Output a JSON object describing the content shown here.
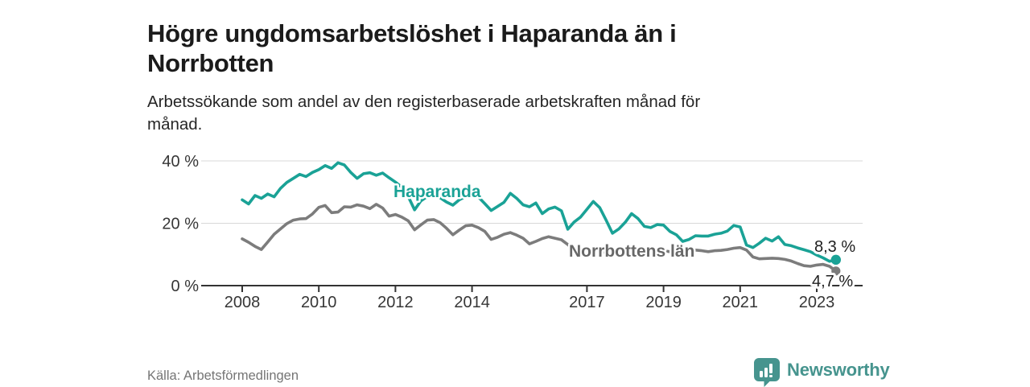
{
  "header": {
    "title_lines": [
      "Högre ungdomsarbetslöshet i Haparanda än i",
      "Norrbotten"
    ],
    "subtitle_lines": [
      "Arbetssökande som andel av den registerbaserade arbetskraften månad för",
      "månad."
    ]
  },
  "footer": {
    "source": "Källa: Arbetsförmedlingen",
    "brand": "Newsworthy"
  },
  "colors": {
    "teal": "#1aa296",
    "gray": "#7c7c7c",
    "gray_label": "#686868",
    "grid": "#d8d8d8",
    "axis": "#333333",
    "brand_teal": "#46948e"
  },
  "chart_data": {
    "type": "line",
    "title": "Högre ungdomsarbetslöshet i Haparanda än i Norrbotten",
    "subtitle": "Arbetssökande som andel av den registerbaserade arbetskraften månad för månad.",
    "source": "Källa: Arbetsförmedlingen",
    "unit": "%",
    "grid": "horizontal-only",
    "legend_position": "inline-labels",
    "x_start_year": 2008,
    "x_step_months": 2,
    "x_end_approx": 2023.5,
    "ylim": [
      0,
      42
    ],
    "x_ticks": [
      {
        "year": 2008,
        "label": "2008"
      },
      {
        "year": 2010,
        "label": "2010"
      },
      {
        "year": 2012,
        "label": "2012"
      },
      {
        "year": 2014,
        "label": "2014"
      },
      {
        "year": 2017,
        "label": "2017"
      },
      {
        "year": 2019,
        "label": "2019"
      },
      {
        "year": 2021,
        "label": "2021"
      },
      {
        "year": 2023,
        "label": "2023"
      }
    ],
    "y_ticks": [
      {
        "value": 0,
        "label": "0 %"
      },
      {
        "value": 20,
        "label": "20 %"
      },
      {
        "value": 40,
        "label": "40 %"
      }
    ],
    "series": [
      {
        "name": "Haparanda",
        "color": "#1aa296",
        "label_color": "#1aa296",
        "end_label": "8,3 %",
        "end_value": 8.3,
        "values": [
          27.5,
          26.2,
          28.9,
          28.0,
          29.4,
          28.5,
          31.2,
          33.1,
          34.4,
          35.7,
          35.0,
          36.3,
          37.2,
          38.5,
          37.6,
          39.4,
          38.7,
          36.3,
          34.4,
          35.9,
          36.2,
          35.4,
          36.1,
          34.6,
          33.2,
          31.6,
          28.6,
          24.3,
          27.2,
          28.6,
          29.3,
          28.2,
          26.8,
          25.8,
          27.5,
          28.6,
          29.6,
          28.4,
          26.3,
          24.1,
          25.4,
          26.7,
          29.6,
          28.0,
          25.9,
          25.3,
          26.5,
          23.1,
          24.6,
          25.2,
          24.0,
          18.1,
          20.4,
          22.0,
          24.5,
          27.0,
          25.0,
          21.0,
          16.8,
          18.2,
          20.3,
          23.1,
          21.5,
          19.0,
          18.6,
          19.6,
          19.4,
          17.4,
          16.3,
          14.2,
          14.8,
          16.0,
          15.9,
          15.9,
          16.5,
          16.8,
          17.5,
          19.3,
          18.8,
          13.0,
          12.2,
          13.6,
          15.2,
          14.3,
          15.7,
          13.2,
          12.8,
          12.1,
          11.5,
          10.9,
          9.8,
          8.9,
          7.8,
          8.3
        ]
      },
      {
        "name": "Norrbottens län",
        "color": "#7c7c7c",
        "label_color": "#686868",
        "end_label": "4,7 %",
        "end_value": 4.7,
        "values": [
          15.0,
          13.9,
          12.6,
          11.6,
          14.0,
          16.5,
          18.2,
          19.9,
          21.0,
          21.4,
          21.5,
          23.0,
          25.1,
          25.7,
          23.4,
          23.6,
          25.3,
          25.2,
          25.9,
          25.5,
          24.7,
          26.1,
          24.9,
          22.3,
          22.8,
          22.0,
          20.8,
          17.9,
          19.5,
          21.0,
          21.2,
          20.2,
          18.4,
          16.3,
          17.8,
          19.2,
          19.4,
          18.6,
          17.4,
          14.8,
          15.5,
          16.5,
          17.0,
          16.2,
          15.2,
          13.4,
          14.2,
          15.1,
          15.7,
          15.2,
          14.7,
          13.2,
          11.3,
          11.6,
          12.1,
          11.7,
          11.1,
          10.5,
          10.8,
          11.2,
          11.6,
          11.2,
          10.8,
          10.4,
          10.7,
          11.0,
          11.2,
          10.9,
          10.7,
          10.9,
          11.1,
          11.4,
          11.2,
          10.9,
          11.2,
          11.3,
          11.6,
          12.0,
          12.2,
          11.4,
          9.2,
          8.6,
          8.7,
          8.8,
          8.7,
          8.4,
          7.9,
          7.1,
          6.4,
          6.2,
          6.6,
          6.8,
          6.2,
          4.7
        ]
      }
    ]
  }
}
